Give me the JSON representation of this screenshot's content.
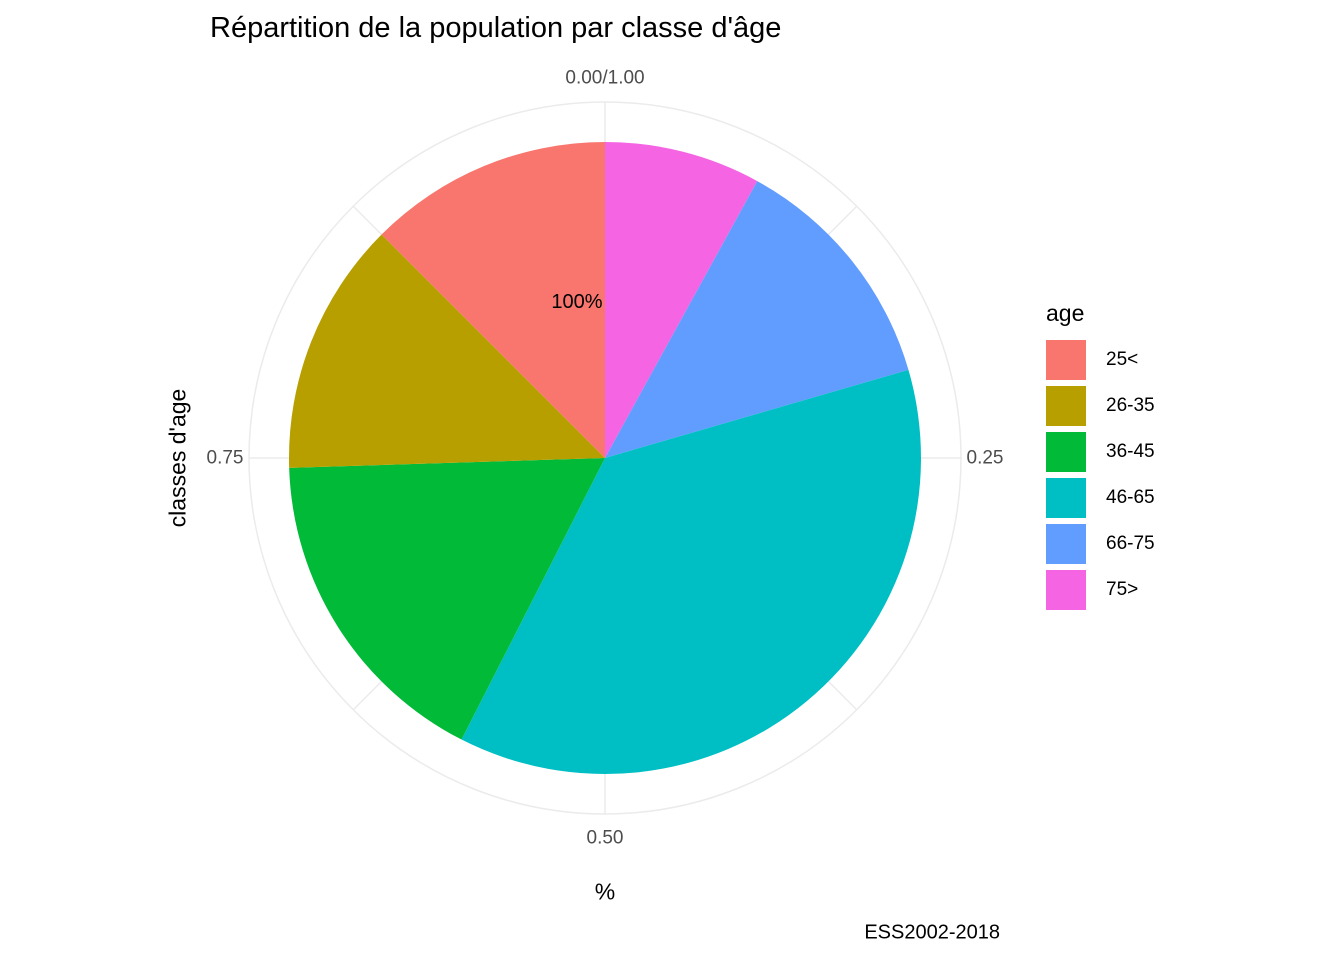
{
  "chart_data": {
    "type": "pie",
    "title": "Répartition de la population par classe d'âge",
    "xlabel": "%",
    "ylabel": "classes d'age",
    "caption": "ESS2002-2018",
    "legend_title": "age",
    "legend_position": "right",
    "categories": [
      "25<",
      "26-35",
      "36-45",
      "46-65",
      "66-75",
      "75>"
    ],
    "values": [
      0.125,
      0.13,
      0.17,
      0.37,
      0.125,
      0.08
    ],
    "colors": [
      "#F8766D",
      "#B79F00",
      "#00BA38",
      "#00BFC4",
      "#619CFF",
      "#F564E3"
    ],
    "theta_ticks": [
      "0.00/1.00",
      "0.25",
      "0.50",
      "0.75"
    ],
    "theta_tick_values": [
      0,
      0.25,
      0.5,
      0.75
    ],
    "center_label": "100%",
    "grid": true
  }
}
